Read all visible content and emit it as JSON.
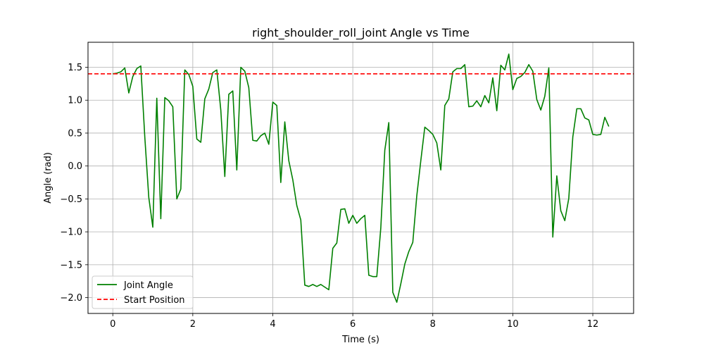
{
  "chart_data": {
    "type": "line",
    "title": "right_shoulder_roll_joint Angle vs Time",
    "xlabel": "Time (s)",
    "ylabel": "Angle (rad)",
    "xlim": [
      -0.62,
      13.02
    ],
    "ylim": [
      -2.24,
      1.88
    ],
    "xticks": [
      0,
      2,
      4,
      6,
      8,
      10,
      12
    ],
    "yticks": [
      -2.0,
      -1.5,
      -1.0,
      -0.5,
      0.0,
      0.5,
      1.0,
      1.5
    ],
    "xtick_labels": [
      "0",
      "2",
      "4",
      "6",
      "8",
      "10",
      "12"
    ],
    "ytick_labels": [
      "−2.0",
      "−1.5",
      "−1.0",
      "−0.5",
      "0.0",
      "0.5",
      "1.0",
      "1.5"
    ],
    "grid": true,
    "legend_position": "lower-left",
    "series": [
      {
        "name": "Joint Angle",
        "style": "solid",
        "color": "#008000",
        "x": [
          0.0,
          0.1,
          0.2,
          0.3,
          0.4,
          0.5,
          0.6,
          0.7,
          0.8,
          0.9,
          1.0,
          1.1,
          1.2,
          1.3,
          1.4,
          1.5,
          1.6,
          1.7,
          1.8,
          1.9,
          2.0,
          2.1,
          2.2,
          2.3,
          2.4,
          2.5,
          2.6,
          2.7,
          2.8,
          2.9,
          3.0,
          3.1,
          3.2,
          3.3,
          3.4,
          3.5,
          3.6,
          3.7,
          3.8,
          3.9,
          4.0,
          4.1,
          4.2,
          4.3,
          4.4,
          4.5,
          4.6,
          4.7,
          4.8,
          4.9,
          5.0,
          5.1,
          5.2,
          5.3,
          5.4,
          5.5,
          5.6,
          5.7,
          5.8,
          5.9,
          6.0,
          6.1,
          6.2,
          6.3,
          6.4,
          6.5,
          6.6,
          6.7,
          6.8,
          6.9,
          7.0,
          7.1,
          7.2,
          7.3,
          7.4,
          7.5,
          7.6,
          7.7,
          7.8,
          7.9,
          8.0,
          8.1,
          8.2,
          8.3,
          8.4,
          8.5,
          8.6,
          8.7,
          8.8,
          8.9,
          9.0,
          9.1,
          9.2,
          9.3,
          9.4,
          9.5,
          9.6,
          9.7,
          9.8,
          9.9,
          10.0,
          10.1,
          10.2,
          10.3,
          10.4,
          10.5,
          10.6,
          10.7,
          10.8,
          10.9,
          11.0,
          11.1,
          11.2,
          11.3,
          11.4,
          11.5,
          11.6,
          11.7,
          11.8,
          11.9,
          12.0,
          12.1,
          12.2,
          12.3,
          12.4
        ],
        "values": [
          1.4,
          1.41,
          1.43,
          1.49,
          1.11,
          1.36,
          1.48,
          1.52,
          0.44,
          -0.48,
          -0.93,
          1.03,
          -0.8,
          1.04,
          0.99,
          0.9,
          -0.5,
          -0.35,
          1.46,
          1.39,
          1.21,
          0.41,
          0.36,
          1.02,
          1.17,
          1.42,
          1.46,
          0.85,
          -0.16,
          1.09,
          1.14,
          -0.06,
          1.5,
          1.44,
          1.19,
          0.39,
          0.38,
          0.46,
          0.5,
          0.33,
          0.97,
          0.92,
          -0.25,
          0.67,
          0.08,
          -0.21,
          -0.6,
          -0.82,
          -1.81,
          -1.83,
          -1.8,
          -1.83,
          -1.8,
          -1.84,
          -1.88,
          -1.25,
          -1.17,
          -0.66,
          -0.65,
          -0.87,
          -0.75,
          -0.87,
          -0.8,
          -0.75,
          -1.66,
          -1.68,
          -1.68,
          -0.94,
          0.24,
          0.66,
          -1.92,
          -2.07,
          -1.79,
          -1.49,
          -1.3,
          -1.16,
          -0.45,
          0.08,
          0.59,
          0.54,
          0.48,
          0.35,
          -0.06,
          0.92,
          1.02,
          1.43,
          1.48,
          1.48,
          1.54,
          0.9,
          0.91,
          0.99,
          0.9,
          1.07,
          0.96,
          1.34,
          0.84,
          1.53,
          1.46,
          1.7,
          1.16,
          1.33,
          1.36,
          1.42,
          1.54,
          1.44,
          1.01,
          0.85,
          1.06,
          1.49,
          -1.08,
          -0.15,
          -0.68,
          -0.83,
          -0.49,
          0.44,
          0.87,
          0.87,
          0.73,
          0.7,
          0.48,
          0.47,
          0.48,
          0.74,
          0.6
        ]
      },
      {
        "name": "Start Position",
        "style": "dashed",
        "color": "#ff0000",
        "x": [
          -0.62,
          13.02
        ],
        "values": [
          1.4,
          1.4
        ]
      }
    ]
  }
}
